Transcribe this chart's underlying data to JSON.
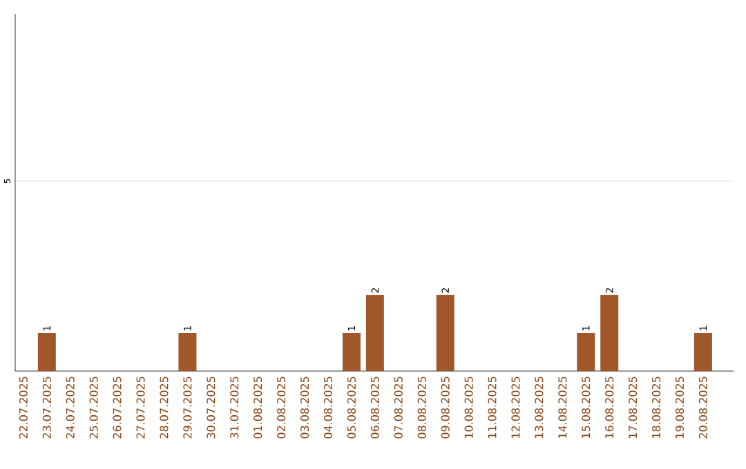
{
  "chart_data": {
    "type": "bar",
    "categories": [
      "22.07.2025",
      "23.07.2025",
      "24.07.2025",
      "25.07.2025",
      "26.07.2025",
      "27.07.2025",
      "28.07.2025",
      "29.07.2025",
      "30.07.2025",
      "31.07.2025",
      "01.08.2025",
      "02.08.2025",
      "03.08.2025",
      "04.08.2025",
      "05.08.2025",
      "06.08.2025",
      "07.08.2025",
      "08.08.2025",
      "09.08.2025",
      "10.08.2025",
      "11.08.2025",
      "12.08.2025",
      "13.08.2025",
      "14.08.2025",
      "15.08.2025",
      "16.08.2025",
      "17.08.2025",
      "18.08.2025",
      "19.08.2025",
      "20.08.2025"
    ],
    "values": [
      0,
      1,
      0,
      0,
      0,
      0,
      0,
      1,
      0,
      0,
      0,
      0,
      0,
      0,
      1,
      2,
      0,
      0,
      2,
      0,
      0,
      0,
      0,
      0,
      1,
      2,
      0,
      0,
      0,
      1
    ],
    "value_labels": [
      null,
      "1",
      null,
      null,
      null,
      null,
      null,
      "1",
      null,
      null,
      null,
      null,
      null,
      null,
      "1",
      "2",
      null,
      null,
      "2",
      null,
      null,
      null,
      null,
      null,
      "1",
      "2",
      null,
      null,
      null,
      "1"
    ],
    "color": "#a0572a",
    "ylim": [
      0,
      9.4
    ],
    "yticks": [
      5
    ],
    "grid": "y"
  }
}
